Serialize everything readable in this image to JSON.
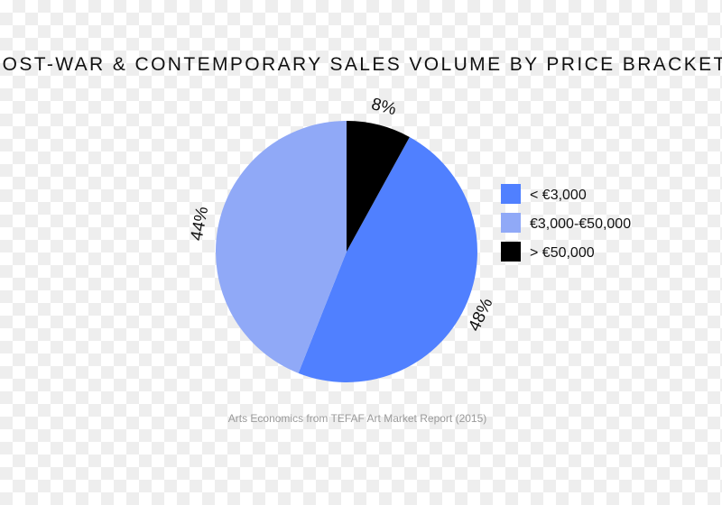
{
  "chart_data": {
    "type": "pie",
    "title": "POST-WAR & CONTEMPORARY SALES VOLUME BY PRICE BRACKET",
    "source": "Arts Economics from TEFAF Art Market Report (2015)",
    "slices": [
      {
        "label": "< €3,000",
        "value": 48,
        "value_label": "48%",
        "color": "#5080ff"
      },
      {
        "label": "€3,000-€50,000",
        "value": 44,
        "value_label": "44%",
        "color": "#90a9f7"
      },
      {
        "label": "> €50,000",
        "value": 8,
        "value_label": "8%",
        "color": "#000000"
      }
    ],
    "legend_position": "right"
  }
}
